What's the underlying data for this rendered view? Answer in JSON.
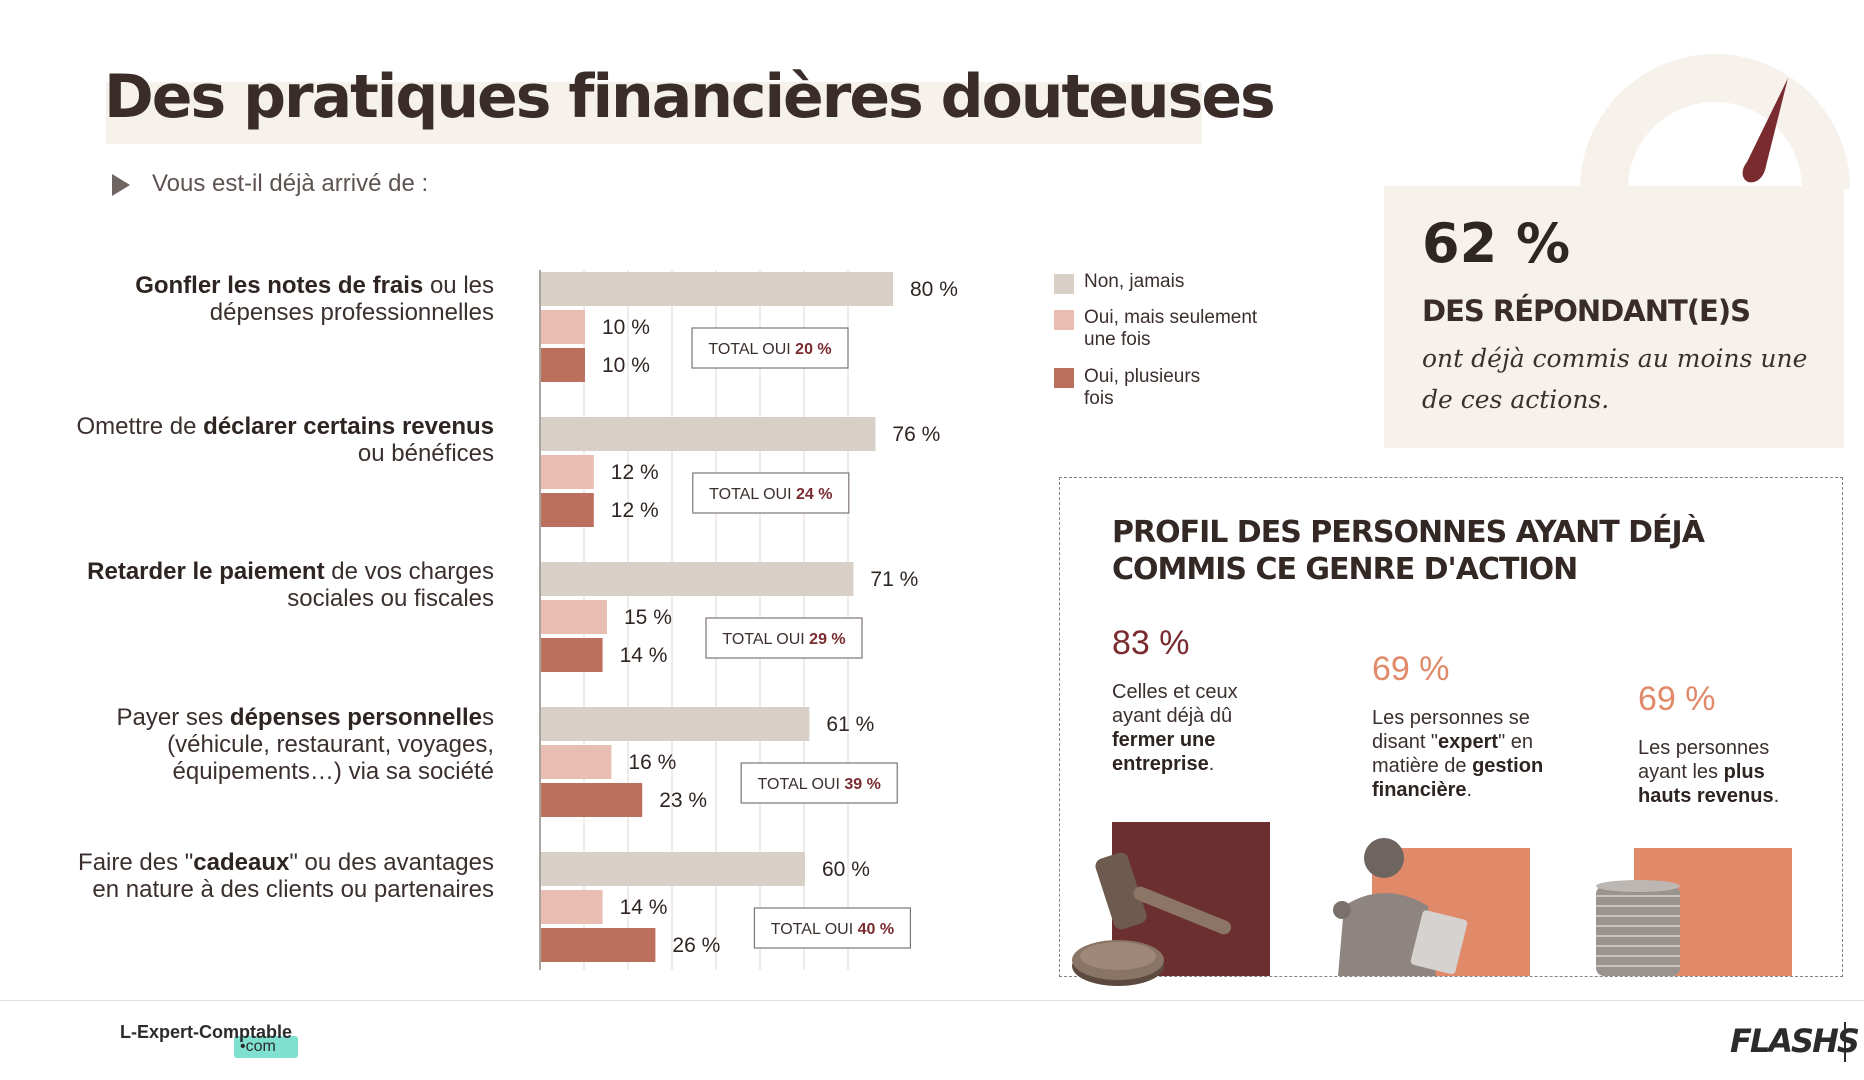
{
  "header": {
    "title": "Des pratiques financières douteuses",
    "subtitle": "Vous est-il déjà arrivé de :"
  },
  "questions": [
    {
      "pre": "",
      "bold": "Gonfler les notes de frais",
      "post": " ou les dépenses professionnelles"
    },
    {
      "pre": "Omettre de ",
      "bold": "déclarer certains revenus",
      "post": " ou bénéfices"
    },
    {
      "pre": "",
      "bold": "Retarder le paiement",
      "post": " de vos charges sociales ou fiscales"
    },
    {
      "pre": "Payer ses ",
      "bold": "dépenses personnelle",
      "post": "s (véhicule, restaurant, voyages, équipements…) via sa société"
    },
    {
      "pre": "Faire des \"",
      "bold": "cadeaux",
      "post": "\" ou des avantages en nature à des clients ou partenaires"
    }
  ],
  "legend": [
    {
      "label": "Non, jamais",
      "color": "#d8cfc7"
    },
    {
      "label": "Oui, mais seulement une fois",
      "color": "#e8bdb2"
    },
    {
      "label": "Oui, plusieurs fois",
      "color": "#bd6f5d"
    }
  ],
  "chart_data": {
    "type": "bar",
    "orientation": "horizontal",
    "xlim": [
      0,
      100
    ],
    "categories": [
      "Gonfler les notes de frais ou les dépenses professionnelles",
      "Omettre de déclarer certains revenus ou bénéfices",
      "Retarder le paiement de vos charges sociales ou fiscales",
      "Payer ses dépenses personnelles (véhicule, restaurant, voyages, équipements…) via sa société",
      "Faire des \"cadeaux\" ou des avantages en nature à des clients ou partenaires"
    ],
    "series": [
      {
        "name": "Non, jamais",
        "values": [
          80,
          76,
          71,
          61,
          60
        ],
        "labels": [
          "80 %",
          "76 %",
          "71 %",
          "61 %",
          "60 %"
        ],
        "color": "#d8cfc7"
      },
      {
        "name": "Oui, mais seulement une fois",
        "values": [
          10,
          12,
          15,
          16,
          14
        ],
        "labels": [
          "10 %",
          "12 %",
          "15 %",
          "16 %",
          "14 %"
        ],
        "color": "#e8bdb2"
      },
      {
        "name": "Oui, plusieurs fois",
        "values": [
          10,
          12,
          14,
          23,
          26
        ],
        "labels": [
          "10 %",
          "12 %",
          "14 %",
          "23 %",
          "26 %"
        ],
        "color": "#bd6f5d"
      }
    ],
    "totals": [
      {
        "prefix": "TOTAL OUI ",
        "value": "20 %"
      },
      {
        "prefix": "TOTAL OUI ",
        "value": "24 %"
      },
      {
        "prefix": "TOTAL OUI ",
        "value": "29 %"
      },
      {
        "prefix": "TOTAL OUI ",
        "value": "39 %"
      },
      {
        "prefix": "TOTAL OUI ",
        "value": "40 %"
      }
    ]
  },
  "stat_card": {
    "value": "62 %",
    "label": "DES RÉPONDANT(E)S",
    "description": "ont déjà commis au moins une de ces actions."
  },
  "profile": {
    "title": "PROFIL DES PERSONNES AYANT DÉJÀ COMMIS CE GENRE D'ACTION",
    "items": [
      {
        "value": "83 %",
        "percent": 83,
        "pre": "Celles et ceux ayant déjà dû ",
        "bold": "fermer une entreprise",
        "post": ".",
        "color": "#6b2f2f",
        "text_color": "#7a2b2f",
        "icon": "gavel-icon"
      },
      {
        "value": "69 %",
        "percent": 69,
        "pre": "Les personnes se disant \"",
        "bold": "expert",
        "post": "\" en matière de ",
        "bold2": "gestion financière",
        "post2": ".",
        "color": "#e08a6a",
        "text_color": "#e08a6a",
        "icon": "man-with-laptop-photo"
      },
      {
        "value": "69 %",
        "percent": 69,
        "pre": "Les personnes ayant les ",
        "bold": "plus hauts revenus",
        "post": ".",
        "color": "#e08a6a",
        "text_color": "#e08a6a",
        "icon": "coin-stack-icon"
      }
    ]
  },
  "footer": {
    "brand": "L-Expert-Comptable",
    "brand_tld": "•com",
    "logo": "FLASHS"
  }
}
